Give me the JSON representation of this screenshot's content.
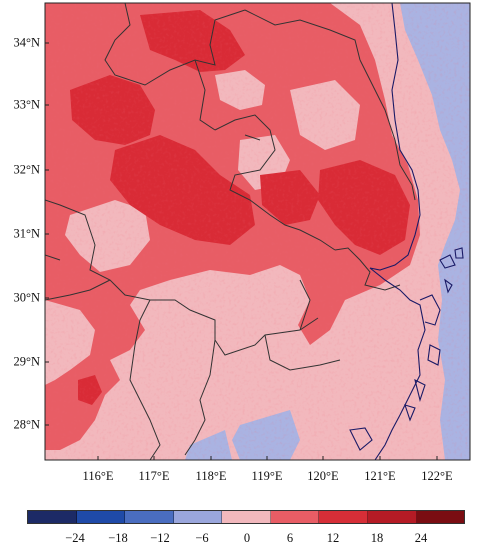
{
  "map": {
    "lat_labels": [
      "34°N",
      "33°N",
      "32°N",
      "31°N",
      "30°N",
      "29°N",
      "28°N"
    ],
    "lon_labels": [
      "116°E",
      "117°E",
      "118°E",
      "119°E",
      "120°E",
      "121°E",
      "122°E"
    ],
    "lon_range": [
      115.2,
      122.6
    ],
    "lat_range": [
      27.4,
      34.7
    ]
  },
  "legend": {
    "labels": [
      "−24",
      "−18",
      "−12",
      "−6",
      "0",
      "6",
      "12",
      "18",
      "24"
    ],
    "colors": [
      "#1c2a66",
      "#1f4aa8",
      "#4a6dc0",
      "#9aa6dc",
      "#f2b8bd",
      "#e85d65",
      "#d62e37",
      "#b51b25",
      "#7a0d12"
    ]
  },
  "colors": {
    "light_pink": "#f2b8bd",
    "medium_red": "#e85d65",
    "deep_red": "#d92b36",
    "light_blue": "#aab3e2",
    "boundary": "#333333",
    "coast": "#1a1a66"
  }
}
